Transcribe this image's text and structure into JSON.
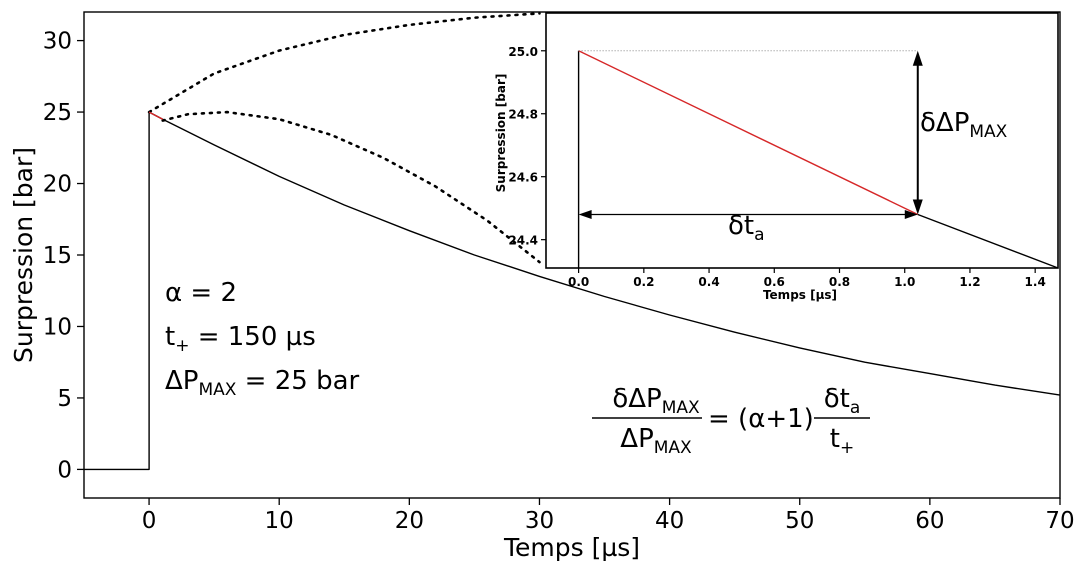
{
  "chart_data": [
    {
      "type": "line",
      "xlabel": "Temps [µs]",
      "ylabel": "Surpression [bar]",
      "xlim": [
        -5,
        70
      ],
      "ylim": [
        -2,
        32
      ],
      "xticks": [
        0,
        10,
        20,
        30,
        40,
        50,
        60,
        70
      ],
      "yticks": [
        0,
        5,
        10,
        15,
        20,
        25,
        30
      ],
      "grid": false,
      "series": [
        {
          "style": "solid",
          "color": "#000000",
          "x": [
            -5,
            0,
            0,
            1.05,
            5,
            10,
            15,
            20,
            25,
            30,
            35,
            40,
            45,
            50,
            55,
            60,
            65,
            70
          ],
          "y": [
            0,
            0,
            25,
            24.5,
            22.7,
            20.5,
            18.5,
            16.7,
            15.0,
            13.5,
            12.1,
            10.8,
            9.6,
            8.5,
            7.5,
            6.7,
            5.9,
            5.2
          ]
        },
        {
          "style": "dotted",
          "color": "#000000",
          "x": [
            0,
            5,
            10,
            15,
            20,
            25,
            30
          ],
          "y": [
            25,
            27.7,
            29.3,
            30.4,
            31.1,
            31.6,
            31.9
          ]
        },
        {
          "style": "dotted",
          "color": "#000000",
          "x": [
            1.05,
            3,
            6,
            10,
            14,
            18,
            22,
            26,
            30
          ],
          "y": [
            24.4,
            24.85,
            25.0,
            24.5,
            23.4,
            21.8,
            19.8,
            17.4,
            14.5
          ]
        },
        {
          "style": "solid",
          "color": "#d62728",
          "x": [
            0,
            1.05
          ],
          "y": [
            25,
            24.5
          ]
        }
      ]
    },
    {
      "type": "line",
      "xlabel": "Temps [µs]",
      "ylabel": "Surpression [bar]",
      "xlim": [
        -0.1,
        1.47
      ],
      "ylim": [
        24.31,
        25.12
      ],
      "xticks": [
        0.0,
        0.2,
        0.4,
        0.6,
        0.8,
        1.0,
        1.2,
        1.4
      ],
      "yticks": [
        24.4,
        24.6,
        24.8,
        25.0
      ],
      "grid": false,
      "series": [
        {
          "style": "solid",
          "color": "#000000",
          "x": [
            0,
            0
          ],
          "y": [
            24.31,
            25.0
          ]
        },
        {
          "style": "solid",
          "color": "#000000",
          "x": [
            1.04,
            1.47
          ],
          "y": [
            24.48,
            24.31
          ]
        },
        {
          "style": "solid",
          "color": "#d62728",
          "x": [
            0,
            1.04
          ],
          "y": [
            25.0,
            24.48
          ]
        },
        {
          "style": "dotted",
          "color": "#888888",
          "x": [
            0,
            1.04
          ],
          "y": [
            25.0,
            25.0
          ]
        }
      ],
      "annotations": [
        {
          "text_main": "δt",
          "text_sub": "a"
        },
        {
          "text_main": "δΔP",
          "text_sub": "MAX"
        }
      ]
    }
  ],
  "annotations": {
    "alpha": "α = 2",
    "t_main": "t",
    "t_sub": "+",
    "t_rest": " = 150 µs",
    "dp_main": "ΔP",
    "dp_sub": "MAX",
    "dp_rest": " = 25 bar",
    "formula": {
      "num_main": "δΔP",
      "num_sub": "MAX",
      "den_main": "ΔP",
      "den_sub": "MAX",
      "middle": "= (α+1)",
      "frac2_num_main": "δt",
      "frac2_num_sub": "a",
      "frac2_den_main": "t",
      "frac2_den_sub": "+"
    }
  }
}
